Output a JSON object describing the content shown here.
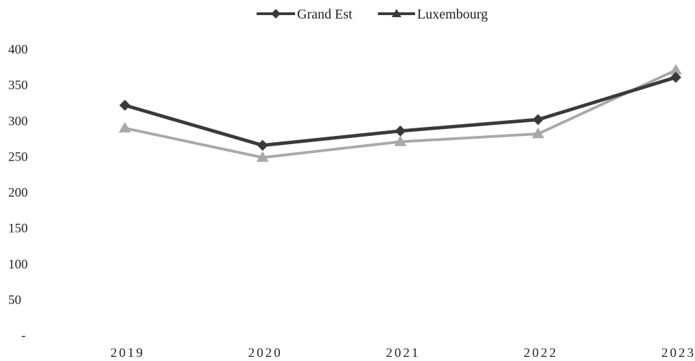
{
  "chart_data": {
    "type": "line",
    "title": "",
    "xlabel": "",
    "ylabel": "",
    "categories": [
      "2019",
      "2020",
      "2021",
      "2022",
      "2023"
    ],
    "ylim": [
      0,
      400
    ],
    "yticks": [
      0,
      50,
      100,
      150,
      200,
      250,
      300,
      350,
      400
    ],
    "ytick_labels": [
      "-",
      "50",
      "100",
      "150",
      "200",
      "250",
      "300",
      "350",
      "400"
    ],
    "grid": false,
    "legend_position": "top-center",
    "series": [
      {
        "name": "Grand Est",
        "values": [
          321,
          265,
          285,
          301,
          360
        ],
        "color": "#3a3a3a",
        "marker": "diamond"
      },
      {
        "name": "Luxembourg",
        "values": [
          289,
          248,
          270,
          281,
          370
        ],
        "color": "#a9a9a9",
        "marker": "triangle"
      }
    ]
  }
}
